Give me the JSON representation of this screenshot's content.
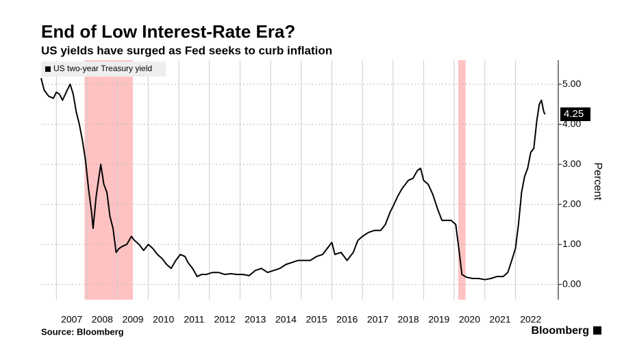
{
  "chart_data": {
    "type": "line",
    "title": "End of Low Interest-Rate Era?",
    "subtitle": "US yields have surged as Fed seeks to curb inflation",
    "y_axis_label": "Percent",
    "source": "Source: Bloomberg",
    "brand": "Bloomberg",
    "x": [
      2006.5,
      2006.6,
      2006.75,
      2006.9,
      2007.0,
      2007.1,
      2007.2,
      2007.35,
      2007.45,
      2007.55,
      2007.65,
      2007.75,
      2007.85,
      2007.95,
      2008.05,
      2008.15,
      2008.2,
      2008.3,
      2008.45,
      2008.55,
      2008.65,
      2008.75,
      2008.85,
      2008.95,
      2009.05,
      2009.15,
      2009.3,
      2009.45,
      2009.55,
      2009.7,
      2009.85,
      2010.0,
      2010.15,
      2010.3,
      2010.45,
      2010.6,
      2010.75,
      2010.9,
      2011.05,
      2011.2,
      2011.3,
      2011.45,
      2011.6,
      2011.75,
      2011.9,
      2012.1,
      2012.3,
      2012.5,
      2012.7,
      2012.9,
      2013.1,
      2013.3,
      2013.5,
      2013.7,
      2013.9,
      2014.1,
      2014.3,
      2014.5,
      2014.7,
      2014.9,
      2015.1,
      2015.3,
      2015.5,
      2015.7,
      2015.85,
      2016.0,
      2016.1,
      2016.3,
      2016.5,
      2016.7,
      2016.85,
      2017.0,
      2017.2,
      2017.4,
      2017.6,
      2017.75,
      2017.9,
      2018.0,
      2018.15,
      2018.3,
      2018.5,
      2018.65,
      2018.8,
      2018.9,
      2019.0,
      2019.15,
      2019.3,
      2019.45,
      2019.6,
      2019.75,
      2019.9,
      2020.05,
      2020.15,
      2020.25,
      2020.4,
      2020.6,
      2020.8,
      2021.0,
      2021.2,
      2021.4,
      2021.6,
      2021.75,
      2021.9,
      2022.0,
      2022.1,
      2022.2,
      2022.3,
      2022.4,
      2022.5,
      2022.6,
      2022.7,
      2022.78,
      2022.85,
      2022.93,
      2022.97
    ],
    "series": [
      {
        "name": "US two-year Treasury yield",
        "color": "#000000",
        "values": [
          5.15,
          4.85,
          4.7,
          4.65,
          4.8,
          4.75,
          4.6,
          4.85,
          5.0,
          4.75,
          4.3,
          4.0,
          3.6,
          3.1,
          2.4,
          1.8,
          1.4,
          2.2,
          3.0,
          2.5,
          2.3,
          1.7,
          1.4,
          0.8,
          0.9,
          0.95,
          1.0,
          1.2,
          1.1,
          1.0,
          0.85,
          1.0,
          0.9,
          0.75,
          0.65,
          0.5,
          0.4,
          0.6,
          0.75,
          0.7,
          0.55,
          0.4,
          0.2,
          0.25,
          0.25,
          0.3,
          0.3,
          0.25,
          0.27,
          0.25,
          0.25,
          0.22,
          0.35,
          0.4,
          0.3,
          0.35,
          0.4,
          0.5,
          0.55,
          0.6,
          0.6,
          0.6,
          0.7,
          0.75,
          0.9,
          1.05,
          0.75,
          0.8,
          0.6,
          0.8,
          1.1,
          1.2,
          1.3,
          1.35,
          1.35,
          1.5,
          1.8,
          1.95,
          2.2,
          2.4,
          2.6,
          2.65,
          2.85,
          2.9,
          2.6,
          2.5,
          2.25,
          1.9,
          1.6,
          1.6,
          1.6,
          1.5,
          0.9,
          0.25,
          0.18,
          0.15,
          0.15,
          0.12,
          0.15,
          0.2,
          0.2,
          0.3,
          0.65,
          0.9,
          1.5,
          2.3,
          2.7,
          2.9,
          3.3,
          3.4,
          4.1,
          4.5,
          4.6,
          4.3,
          4.25
        ]
      }
    ],
    "shaded_periods": [
      [
        2007.92,
        2009.5
      ],
      [
        2020.13,
        2020.37
      ]
    ],
    "xlim": [
      2006.5,
      2023.4
    ],
    "xticks": [
      2007,
      2008,
      2009,
      2010,
      2011,
      2012,
      2013,
      2014,
      2015,
      2016,
      2017,
      2018,
      2019,
      2020,
      2021,
      2022
    ],
    "ylim": [
      -0.38,
      5.6
    ],
    "yticks": [
      {
        "value": 0,
        "label": "0.00"
      },
      {
        "value": 1,
        "label": "1.00"
      },
      {
        "value": 2,
        "label": "2.00"
      },
      {
        "value": 3,
        "label": "3.00"
      },
      {
        "value": 4,
        "label": "4.00"
      },
      {
        "value": 5,
        "label": "5.00"
      }
    ],
    "grid": true
  }
}
